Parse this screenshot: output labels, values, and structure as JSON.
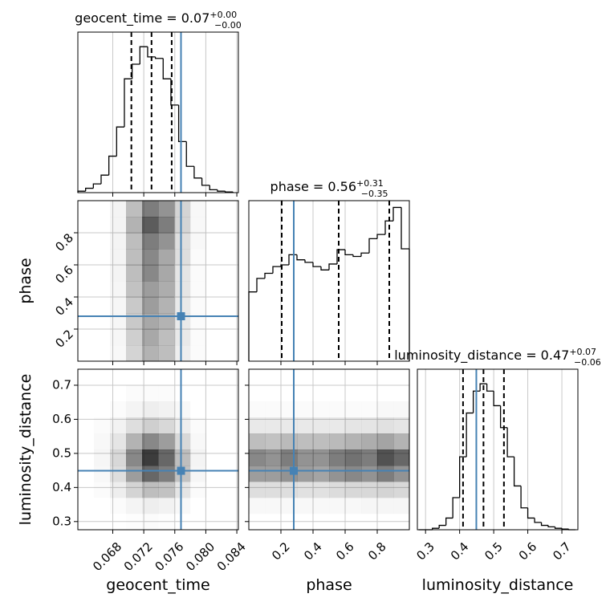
{
  "chart_data": [
    {
      "type": "histogram",
      "title": {
        "text": "geocent_time = 0.07",
        "upper": "+0.00",
        "lower": "−0.00"
      },
      "bins": [
        0.0635,
        0.0645,
        0.0655,
        0.0665,
        0.0675,
        0.0685,
        0.0695,
        0.0705,
        0.0715,
        0.0725,
        0.0735,
        0.0745,
        0.0755,
        0.0765,
        0.0775,
        0.0785,
        0.0795,
        0.0805,
        0.0815,
        0.0825,
        0.0835
      ],
      "counts": [
        0.01,
        0.03,
        0.06,
        0.12,
        0.25,
        0.45,
        0.78,
        0.88,
        1.0,
        0.93,
        0.92,
        0.78,
        0.6,
        0.35,
        0.18,
        0.1,
        0.05,
        0.02,
        0.01,
        0.005
      ],
      "xlim": [
        0.0635,
        0.0842
      ],
      "ylim": [
        0,
        1.1
      ],
      "xticks": [
        0.068,
        0.072,
        0.076,
        {
          "value": 0.08,
          "label": "0.080"
        },
        0.084
      ],
      "quantiles": [
        0.0704,
        0.073,
        0.0756
      ],
      "truth": 0.0768,
      "color": "#000000",
      "truth_color": "#4682b4",
      "grid": true
    },
    {
      "type": "density2d",
      "xlim": [
        0.0635,
        0.0842
      ],
      "ylim": [
        0,
        1
      ],
      "xticks": [
        0.068,
        0.072,
        0.076,
        {
          "value": 0.08,
          "label": "0.080"
        },
        0.084
      ],
      "yticks": [
        0.2,
        0.4,
        0.6,
        0.8
      ],
      "ylabel": "phase",
      "density": [
        [
          0,
          0,
          0.05,
          0.3,
          0.6,
          0.5,
          0.2,
          0.03,
          0,
          0
        ],
        [
          0,
          0,
          0.05,
          0.35,
          0.75,
          0.6,
          0.2,
          0.03,
          0,
          0
        ],
        [
          0,
          0,
          0.05,
          0.3,
          0.6,
          0.5,
          0.15,
          0.03,
          0,
          0
        ],
        [
          0,
          0,
          0.05,
          0.3,
          0.55,
          0.4,
          0.15,
          0.02,
          0,
          0
        ],
        [
          0,
          0,
          0.05,
          0.3,
          0.55,
          0.4,
          0.12,
          0.02,
          0,
          0
        ],
        [
          0,
          0,
          0.04,
          0.28,
          0.45,
          0.38,
          0.12,
          0.02,
          0,
          0
        ],
        [
          0,
          0,
          0.04,
          0.25,
          0.45,
          0.35,
          0.1,
          0.02,
          0,
          0
        ],
        [
          0,
          0,
          0.04,
          0.25,
          0.4,
          0.35,
          0.1,
          0.02,
          0,
          0
        ],
        [
          0,
          0,
          0.04,
          0.22,
          0.4,
          0.3,
          0.1,
          0.02,
          0,
          0
        ],
        [
          0,
          0,
          0.03,
          0.2,
          0.35,
          0.3,
          0.08,
          0.02,
          0,
          0
        ]
      ],
      "truth": [
        0.0768,
        0.28
      ],
      "truth_color": "#4682b4",
      "grid": true
    },
    {
      "type": "histogram",
      "title": {
        "text": "phase = 0.56",
        "upper": "+0.31",
        "lower": "−0.35"
      },
      "bins": [
        0,
        0.05,
        0.1,
        0.15,
        0.2,
        0.25,
        0.3,
        0.35,
        0.4,
        0.45,
        0.5,
        0.55,
        0.6,
        0.65,
        0.7,
        0.75,
        0.8,
        0.85,
        0.9,
        0.95,
        1.0
      ],
      "counts": [
        82,
        98,
        104,
        112,
        114,
        126,
        120,
        117,
        112,
        108,
        115,
        132,
        126,
        124,
        128,
        145,
        150,
        166,
        182,
        133
      ],
      "xlim": [
        0,
        1
      ],
      "ylim": [
        0,
        190
      ],
      "xticks": [
        0.2,
        0.4,
        0.6,
        0.8
      ],
      "quantiles": [
        0.205,
        0.56,
        0.875
      ],
      "truth": 0.28,
      "color": "#000000",
      "truth_color": "#4682b4",
      "grid": true
    },
    {
      "type": "density2d",
      "xlim": [
        0.0635,
        0.0842
      ],
      "ylim": [
        0.276,
        0.747
      ],
      "xticks": [
        0.068,
        0.072,
        0.076,
        {
          "value": 0.08,
          "label": "0.080"
        },
        0.084
      ],
      "yticks": [
        0.3,
        0.4,
        0.5,
        0.6,
        0.7
      ],
      "xlabel": "geocent_time",
      "ylabel": "luminosity_distance",
      "density": [
        [
          0,
          0,
          0,
          0,
          0,
          0,
          0,
          0,
          0,
          0
        ],
        [
          0,
          0,
          0,
          0.02,
          0.02,
          0.02,
          0,
          0,
          0,
          0
        ],
        [
          0,
          0,
          0.02,
          0.05,
          0.08,
          0.06,
          0.03,
          0,
          0,
          0
        ],
        [
          0,
          0.02,
          0.06,
          0.15,
          0.22,
          0.18,
          0.08,
          0.02,
          0,
          0
        ],
        [
          0,
          0.03,
          0.12,
          0.35,
          0.55,
          0.45,
          0.18,
          0.03,
          0,
          0
        ],
        [
          0,
          0.04,
          0.18,
          0.55,
          0.9,
          0.7,
          0.3,
          0.05,
          0,
          0
        ],
        [
          0,
          0.03,
          0.15,
          0.45,
          0.7,
          0.6,
          0.28,
          0.04,
          0,
          0
        ],
        [
          0,
          0.02,
          0.08,
          0.2,
          0.3,
          0.28,
          0.12,
          0.02,
          0,
          0
        ],
        [
          0,
          0,
          0.02,
          0.05,
          0.08,
          0.06,
          0.03,
          0,
          0,
          0
        ],
        [
          0,
          0,
          0,
          0.01,
          0.02,
          0.01,
          0,
          0,
          0,
          0
        ]
      ],
      "truth": [
        0.0768,
        0.449
      ],
      "truth_color": "#4682b4",
      "grid": true
    },
    {
      "type": "density2d",
      "xlim": [
        0,
        1
      ],
      "ylim": [
        0.276,
        0.747
      ],
      "xticks": [
        0.2,
        0.4,
        0.6,
        0.8
      ],
      "yticks": [
        0.3,
        0.4,
        0.5,
        0.6,
        0.7
      ],
      "xlabel": "phase",
      "density": [
        [
          0,
          0,
          0,
          0,
          0,
          0,
          0,
          0,
          0,
          0
        ],
        [
          0,
          0,
          0,
          0,
          0,
          0,
          0,
          0,
          0,
          0
        ],
        [
          0.02,
          0.02,
          0.02,
          0.02,
          0.02,
          0.02,
          0.02,
          0.02,
          0.03,
          0.03
        ],
        [
          0.1,
          0.1,
          0.1,
          0.1,
          0.1,
          0.1,
          0.12,
          0.12,
          0.14,
          0.12
        ],
        [
          0.3,
          0.28,
          0.32,
          0.3,
          0.3,
          0.32,
          0.35,
          0.38,
          0.42,
          0.35
        ],
        [
          0.55,
          0.5,
          0.6,
          0.5,
          0.5,
          0.6,
          0.65,
          0.6,
          0.8,
          0.7
        ],
        [
          0.45,
          0.45,
          0.5,
          0.45,
          0.42,
          0.5,
          0.55,
          0.5,
          0.6,
          0.5
        ],
        [
          0.15,
          0.15,
          0.15,
          0.14,
          0.14,
          0.16,
          0.18,
          0.18,
          0.2,
          0.18
        ],
        [
          0.03,
          0.03,
          0.03,
          0.03,
          0.03,
          0.03,
          0.03,
          0.04,
          0.04,
          0.04
        ],
        [
          0,
          0,
          0,
          0,
          0,
          0,
          0,
          0,
          0,
          0
        ]
      ],
      "truth": [
        0.28,
        0.449
      ],
      "truth_color": "#4682b4",
      "grid": true
    },
    {
      "type": "histogram",
      "title": {
        "text": "luminosity_distance = 0.47",
        "upper": "+0.07",
        "lower": "−0.06"
      },
      "bins": [
        0.28,
        0.3,
        0.32,
        0.34,
        0.36,
        0.38,
        0.4,
        0.42,
        0.44,
        0.46,
        0.48,
        0.5,
        0.52,
        0.54,
        0.56,
        0.58,
        0.6,
        0.62,
        0.64,
        0.66,
        0.68,
        0.7,
        0.72,
        0.74
      ],
      "counts": [
        0,
        0,
        0.01,
        0.03,
        0.08,
        0.22,
        0.5,
        0.8,
        0.95,
        1.0,
        0.95,
        0.85,
        0.7,
        0.5,
        0.3,
        0.15,
        0.08,
        0.05,
        0.03,
        0.02,
        0.01,
        0.005,
        0
      ],
      "xlim": [
        0.276,
        0.747
      ],
      "ylim": [
        0,
        1.1
      ],
      "xticks": [
        0.3,
        0.4,
        0.5,
        0.6,
        0.7
      ],
      "xlabel": "luminosity_distance",
      "quantiles": [
        0.41,
        0.47,
        0.53
      ],
      "truth": 0.449,
      "color": "#000000",
      "truth_color": "#4682b4",
      "grid": true
    }
  ]
}
